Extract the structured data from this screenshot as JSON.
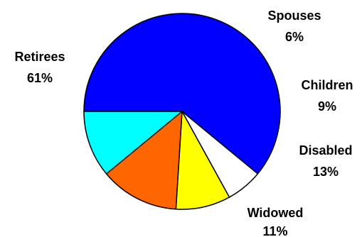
{
  "chart_data": {
    "type": "pie",
    "title": "",
    "start_angle_deg": 180,
    "direction": "counterclockwise",
    "slices": [
      {
        "label": "Retirees",
        "percent_label": "61%",
        "value": 61,
        "color": "#0000ff"
      },
      {
        "label": "Spouses",
        "percent_label": "6%",
        "value": 6,
        "color": "#ffffff"
      },
      {
        "label": "Children",
        "percent_label": "9%",
        "value": 9,
        "color": "#ffff00"
      },
      {
        "label": "Disabled",
        "percent_label": "13%",
        "value": 13,
        "color": "#ff6600"
      },
      {
        "label": "Widowed",
        "percent_label": "11%",
        "value": 11,
        "color": "#00ffff"
      }
    ],
    "outline_color": "#000000",
    "legend": "none"
  }
}
